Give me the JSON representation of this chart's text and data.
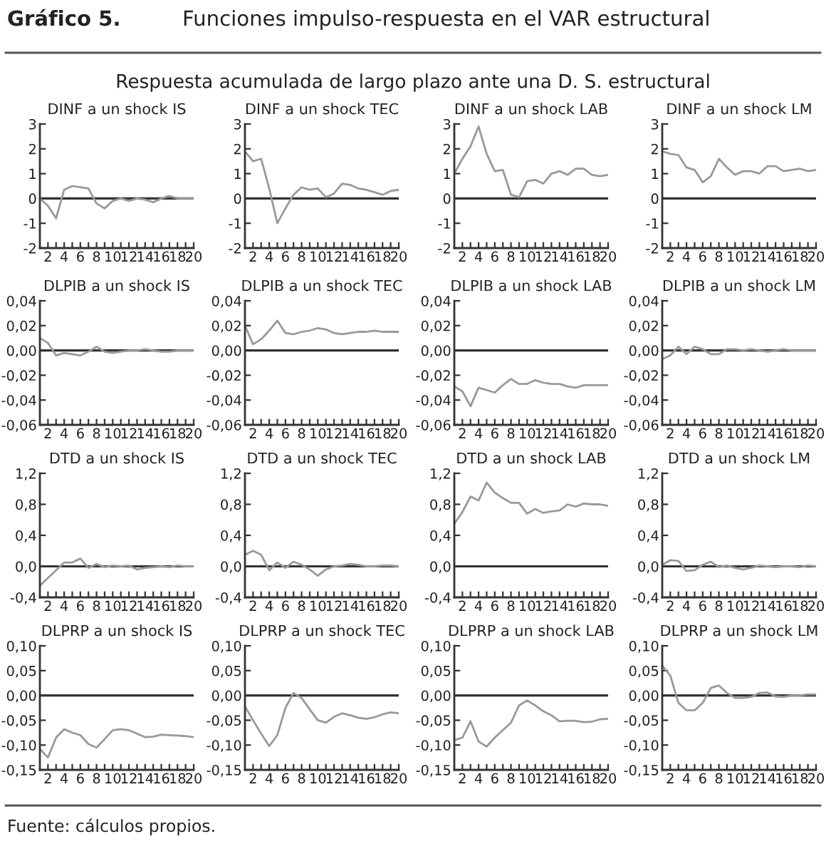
{
  "chart_data": [
    {
      "type": "other",
      "title": "Funciones impulso-respuesta en el VAR estructural",
      "annotations": [
        "Gráfico 5.",
        "Respuesta acumulada de largo plazo ante una D. S. estructural",
        "Fuente: cálculos propios."
      ]
    },
    {
      "type": "line",
      "title": "DINF a un shock IS",
      "x": [
        1,
        2,
        3,
        4,
        5,
        6,
        7,
        8,
        9,
        10,
        11,
        12,
        13,
        14,
        15,
        16,
        17,
        18,
        19,
        20
      ],
      "xlim": [
        1,
        20
      ],
      "ylim": [
        -2,
        3
      ],
      "yticks": [
        -2,
        -1,
        0,
        1,
        2,
        3
      ],
      "xticks": [
        2,
        {
          "value": 3,
          "label": null
        },
        4,
        {
          "value": 5,
          "label": null
        },
        6,
        {
          "value": 7,
          "label": null
        },
        8,
        {
          "value": 9,
          "label": null
        },
        10,
        {
          "value": 11,
          "label": null
        },
        12,
        {
          "value": 13,
          "label": null
        },
        14,
        {
          "value": 15,
          "label": null
        },
        16,
        {
          "value": 17,
          "label": null
        },
        18,
        {
          "value": 19,
          "label": null
        },
        20
      ],
      "ref_lines": [
        {
          "axis": "y",
          "value": 0,
          "color": "#333333"
        }
      ],
      "series": [
        {
          "color": "#999999",
          "values": [
            0,
            -0.3,
            -0.8,
            0.35,
            0.5,
            0.45,
            0.4,
            -0.2,
            -0.4,
            -0.1,
            0,
            -0.1,
            0,
            -0.05,
            -0.15,
            0,
            0.1,
            0,
            0,
            0
          ]
        }
      ]
    },
    {
      "type": "line",
      "title": "DINF a un shock TEC",
      "x": [
        1,
        2,
        3,
        4,
        5,
        6,
        7,
        8,
        9,
        10,
        11,
        12,
        13,
        14,
        15,
        16,
        17,
        18,
        19,
        20
      ],
      "xlim": [
        1,
        20
      ],
      "ylim": [
        -2,
        3
      ],
      "yticks": [
        -2,
        -1,
        0,
        1,
        2,
        3
      ],
      "xticks": [
        2,
        {
          "value": 3,
          "label": null
        },
        4,
        {
          "value": 5,
          "label": null
        },
        6,
        {
          "value": 7,
          "label": null
        },
        8,
        {
          "value": 9,
          "label": null
        },
        10,
        {
          "value": 11,
          "label": null
        },
        12,
        {
          "value": 13,
          "label": null
        },
        14,
        {
          "value": 15,
          "label": null
        },
        16,
        {
          "value": 17,
          "label": null
        },
        18,
        {
          "value": 19,
          "label": null
        },
        20
      ],
      "ref_lines": [
        {
          "axis": "y",
          "value": 0,
          "color": "#333333"
        }
      ],
      "series": [
        {
          "color": "#999999",
          "values": [
            1.9,
            1.5,
            1.6,
            0.4,
            -1.0,
            -0.4,
            0.15,
            0.45,
            0.35,
            0.4,
            0.05,
            0.2,
            0.6,
            0.55,
            0.4,
            0.35,
            0.25,
            0.15,
            0.3,
            0.35
          ]
        }
      ]
    },
    {
      "type": "line",
      "title": "DINF a un shock LAB",
      "x": [
        1,
        2,
        3,
        4,
        5,
        6,
        7,
        8,
        9,
        10,
        11,
        12,
        13,
        14,
        15,
        16,
        17,
        18,
        19,
        20
      ],
      "xlim": [
        1,
        20
      ],
      "ylim": [
        -2,
        3
      ],
      "yticks": [
        -2,
        -1,
        0,
        1,
        2,
        3
      ],
      "xticks": [
        2,
        {
          "value": 3,
          "label": null
        },
        4,
        {
          "value": 5,
          "label": null
        },
        6,
        {
          "value": 7,
          "label": null
        },
        8,
        {
          "value": 9,
          "label": null
        },
        10,
        {
          "value": 11,
          "label": null
        },
        12,
        {
          "value": 13,
          "label": null
        },
        14,
        {
          "value": 15,
          "label": null
        },
        16,
        {
          "value": 17,
          "label": null
        },
        18,
        {
          "value": 19,
          "label": null
        },
        20
      ],
      "ref_lines": [
        {
          "axis": "y",
          "value": 0,
          "color": "#333333"
        }
      ],
      "series": [
        {
          "color": "#999999",
          "values": [
            1.0,
            1.6,
            2.1,
            2.9,
            1.8,
            1.1,
            1.15,
            0.15,
            0.05,
            0.7,
            0.75,
            0.6,
            1.0,
            1.1,
            0.95,
            1.2,
            1.2,
            0.95,
            0.9,
            0.95
          ]
        }
      ]
    },
    {
      "type": "line",
      "title": "DINF a un shock LM",
      "x": [
        1,
        2,
        3,
        4,
        5,
        6,
        7,
        8,
        9,
        10,
        11,
        12,
        13,
        14,
        15,
        16,
        17,
        18,
        19,
        20
      ],
      "xlim": [
        1,
        20
      ],
      "ylim": [
        -2,
        3
      ],
      "yticks": [
        -2,
        -1,
        0,
        1,
        2,
        3
      ],
      "xticks": [
        2,
        {
          "value": 3,
          "label": null
        },
        4,
        {
          "value": 5,
          "label": null
        },
        6,
        {
          "value": 7,
          "label": null
        },
        8,
        {
          "value": 9,
          "label": null
        },
        10,
        {
          "value": 11,
          "label": null
        },
        12,
        {
          "value": 13,
          "label": null
        },
        14,
        {
          "value": 15,
          "label": null
        },
        16,
        {
          "value": 17,
          "label": null
        },
        18,
        {
          "value": 19,
          "label": null
        },
        20
      ],
      "ref_lines": [
        {
          "axis": "y",
          "value": 0,
          "color": "#333333"
        }
      ],
      "series": [
        {
          "color": "#999999",
          "values": [
            1.9,
            1.8,
            1.75,
            1.25,
            1.15,
            0.65,
            0.9,
            1.6,
            1.25,
            0.95,
            1.1,
            1.1,
            1.0,
            1.3,
            1.3,
            1.1,
            1.15,
            1.2,
            1.1,
            1.15
          ]
        }
      ]
    },
    {
      "type": "line",
      "title": "DLPIB a un shock IS",
      "x": [
        1,
        2,
        3,
        4,
        5,
        6,
        7,
        8,
        9,
        10,
        11,
        12,
        13,
        14,
        15,
        16,
        17,
        18,
        19,
        20
      ],
      "xlim": [
        1,
        20
      ],
      "ylim": [
        -0.06,
        0.04
      ],
      "yticks": [
        {
          "value": -0.06,
          "label": "-0,06"
        },
        {
          "value": -0.04,
          "label": "-0,04"
        },
        {
          "value": -0.02,
          "label": "-0,02"
        },
        {
          "value": 0,
          "label": "0,00"
        },
        {
          "value": 0.02,
          "label": "0,02"
        },
        {
          "value": 0.04,
          "label": "0,04"
        }
      ],
      "xticks": [
        2,
        {
          "value": 3,
          "label": null
        },
        4,
        {
          "value": 5,
          "label": null
        },
        6,
        {
          "value": 7,
          "label": null
        },
        8,
        {
          "value": 9,
          "label": null
        },
        10,
        {
          "value": 11,
          "label": null
        },
        12,
        {
          "value": 13,
          "label": null
        },
        14,
        {
          "value": 15,
          "label": null
        },
        16,
        {
          "value": 17,
          "label": null
        },
        18,
        {
          "value": 19,
          "label": null
        },
        20
      ],
      "ref_lines": [
        {
          "axis": "y",
          "value": 0,
          "color": "#333333"
        }
      ],
      "series": [
        {
          "color": "#999999",
          "values": [
            0.01,
            0.006,
            -0.004,
            -0.002,
            -0.003,
            -0.004,
            -0.001,
            0.003,
            -0.001,
            -0.002,
            -0.001,
            0,
            0,
            0.001,
            0,
            -0.001,
            -0.001,
            0,
            0,
            0
          ]
        }
      ]
    },
    {
      "type": "line",
      "title": "DLPIB a un shock TEC",
      "x": [
        1,
        2,
        3,
        4,
        5,
        6,
        7,
        8,
        9,
        10,
        11,
        12,
        13,
        14,
        15,
        16,
        17,
        18,
        19,
        20
      ],
      "xlim": [
        1,
        20
      ],
      "ylim": [
        -0.06,
        0.04
      ],
      "yticks": [
        {
          "value": -0.06,
          "label": "-0,06"
        },
        {
          "value": -0.04,
          "label": "-0,04"
        },
        {
          "value": -0.02,
          "label": "-0,02"
        },
        {
          "value": 0,
          "label": "0,00"
        },
        {
          "value": 0.02,
          "label": "0,02"
        },
        {
          "value": 0.04,
          "label": "0,04"
        }
      ],
      "xticks": [
        2,
        {
          "value": 3,
          "label": null
        },
        4,
        {
          "value": 5,
          "label": null
        },
        6,
        {
          "value": 7,
          "label": null
        },
        8,
        {
          "value": 9,
          "label": null
        },
        10,
        {
          "value": 11,
          "label": null
        },
        12,
        {
          "value": 13,
          "label": null
        },
        14,
        {
          "value": 15,
          "label": null
        },
        16,
        {
          "value": 17,
          "label": null
        },
        18,
        {
          "value": 19,
          "label": null
        },
        20
      ],
      "ref_lines": [
        {
          "axis": "y",
          "value": 0,
          "color": "#333333"
        }
      ],
      "series": [
        {
          "color": "#999999",
          "values": [
            0.02,
            0.005,
            0.009,
            0.016,
            0.024,
            0.014,
            0.013,
            0.015,
            0.016,
            0.018,
            0.017,
            0.014,
            0.013,
            0.014,
            0.015,
            0.015,
            0.016,
            0.015,
            0.015,
            0.015
          ]
        }
      ]
    },
    {
      "type": "line",
      "title": "DLPIB a un shock LAB",
      "x": [
        1,
        2,
        3,
        4,
        5,
        6,
        7,
        8,
        9,
        10,
        11,
        12,
        13,
        14,
        15,
        16,
        17,
        18,
        19,
        20
      ],
      "xlim": [
        1,
        20
      ],
      "ylim": [
        -0.06,
        0.04
      ],
      "yticks": [
        {
          "value": -0.06,
          "label": "-0,06"
        },
        {
          "value": -0.04,
          "label": "-0,04"
        },
        {
          "value": -0.02,
          "label": "-0,02"
        },
        {
          "value": 0,
          "label": "0,00"
        },
        {
          "value": 0.02,
          "label": "0,02"
        },
        {
          "value": 0.04,
          "label": "0,04"
        }
      ],
      "xticks": [
        2,
        {
          "value": 3,
          "label": null
        },
        4,
        {
          "value": 5,
          "label": null
        },
        6,
        {
          "value": 7,
          "label": null
        },
        8,
        {
          "value": 9,
          "label": null
        },
        10,
        {
          "value": 11,
          "label": null
        },
        12,
        {
          "value": 13,
          "label": null
        },
        14,
        {
          "value": 15,
          "label": null
        },
        16,
        {
          "value": 17,
          "label": null
        },
        18,
        {
          "value": 19,
          "label": null
        },
        20
      ],
      "ref_lines": [
        {
          "axis": "y",
          "value": 0,
          "color": "#333333"
        }
      ],
      "series": [
        {
          "color": "#999999",
          "values": [
            -0.029,
            -0.033,
            -0.045,
            -0.03,
            -0.032,
            -0.034,
            -0.028,
            -0.023,
            -0.027,
            -0.027,
            -0.024,
            -0.026,
            -0.027,
            -0.027,
            -0.029,
            -0.03,
            -0.028,
            -0.028,
            -0.028,
            -0.028
          ]
        }
      ]
    },
    {
      "type": "line",
      "title": "DLPIB a un shock LM",
      "x": [
        1,
        2,
        3,
        4,
        5,
        6,
        7,
        8,
        9,
        10,
        11,
        12,
        13,
        14,
        15,
        16,
        17,
        18,
        19,
        20
      ],
      "xlim": [
        1,
        20
      ],
      "ylim": [
        -0.06,
        0.04
      ],
      "yticks": [
        {
          "value": -0.06,
          "label": "-0,06"
        },
        {
          "value": -0.04,
          "label": "-0,04"
        },
        {
          "value": -0.02,
          "label": "-0,02"
        },
        {
          "value": 0,
          "label": "0,00"
        },
        {
          "value": 0.02,
          "label": "0,02"
        },
        {
          "value": 0.04,
          "label": "0,04"
        }
      ],
      "xticks": [
        2,
        {
          "value": 3,
          "label": null
        },
        4,
        {
          "value": 5,
          "label": null
        },
        6,
        {
          "value": 7,
          "label": null
        },
        8,
        {
          "value": 9,
          "label": null
        },
        10,
        {
          "value": 11,
          "label": null
        },
        12,
        {
          "value": 13,
          "label": null
        },
        14,
        {
          "value": 15,
          "label": null
        },
        16,
        {
          "value": 17,
          "label": null
        },
        18,
        {
          "value": 19,
          "label": null
        },
        20
      ],
      "ref_lines": [
        {
          "axis": "y",
          "value": 0,
          "color": "#333333"
        }
      ],
      "series": [
        {
          "color": "#999999",
          "values": [
            -0.007,
            -0.004,
            0.003,
            -0.003,
            0.003,
            0.001,
            -0.003,
            -0.003,
            0.001,
            0.001,
            0,
            0.001,
            0,
            -0.001,
            0,
            0.001,
            0,
            0,
            0,
            0
          ]
        }
      ]
    },
    {
      "type": "line",
      "title": "DTD a un shock IS",
      "x": [
        1,
        2,
        3,
        4,
        5,
        6,
        7,
        8,
        9,
        10,
        11,
        12,
        13,
        14,
        15,
        16,
        17,
        18,
        19,
        20
      ],
      "xlim": [
        1,
        20
      ],
      "ylim": [
        -0.4,
        1.2
      ],
      "yticks": [
        {
          "value": -0.4,
          "label": "-0,4"
        },
        {
          "value": 0,
          "label": "0,0"
        },
        {
          "value": 0.4,
          "label": "0,4"
        },
        {
          "value": 0.8,
          "label": "0,8"
        },
        {
          "value": 1.2,
          "label": "1,2"
        }
      ],
      "xticks": [
        2,
        {
          "value": 3,
          "label": null
        },
        4,
        {
          "value": 5,
          "label": null
        },
        6,
        {
          "value": 7,
          "label": null
        },
        8,
        {
          "value": 9,
          "label": null
        },
        10,
        {
          "value": 11,
          "label": null
        },
        12,
        {
          "value": 13,
          "label": null
        },
        14,
        {
          "value": 15,
          "label": null
        },
        16,
        {
          "value": 17,
          "label": null
        },
        18,
        {
          "value": 19,
          "label": null
        },
        20
      ],
      "ref_lines": [
        {
          "axis": "y",
          "value": 0,
          "color": "#333333"
        }
      ],
      "series": [
        {
          "color": "#999999",
          "values": [
            -0.25,
            -0.15,
            -0.05,
            0.05,
            0.05,
            0.1,
            -0.02,
            0.03,
            -0.01,
            0.01,
            0,
            0.01,
            -0.04,
            -0.02,
            -0.01,
            0,
            -0.01,
            0.01,
            0,
            0
          ]
        }
      ]
    },
    {
      "type": "line",
      "title": "DTD a un shock TEC",
      "x": [
        1,
        2,
        3,
        4,
        5,
        6,
        7,
        8,
        9,
        10,
        11,
        12,
        13,
        14,
        15,
        16,
        17,
        18,
        19,
        20
      ],
      "xlim": [
        1,
        20
      ],
      "ylim": [
        -0.4,
        1.2
      ],
      "yticks": [
        {
          "value": -0.4,
          "label": "-0,4"
        },
        {
          "value": 0,
          "label": "0,0"
        },
        {
          "value": 0.4,
          "label": "0,4"
        },
        {
          "value": 0.8,
          "label": "0,8"
        },
        {
          "value": 1.2,
          "label": "1,2"
        }
      ],
      "xticks": [
        2,
        {
          "value": 3,
          "label": null
        },
        4,
        {
          "value": 5,
          "label": null
        },
        6,
        {
          "value": 7,
          "label": null
        },
        8,
        {
          "value": 9,
          "label": null
        },
        10,
        {
          "value": 11,
          "label": null
        },
        12,
        {
          "value": 13,
          "label": null
        },
        14,
        {
          "value": 15,
          "label": null
        },
        16,
        {
          "value": 17,
          "label": null
        },
        18,
        {
          "value": 19,
          "label": null
        },
        20
      ],
      "ref_lines": [
        {
          "axis": "y",
          "value": 0,
          "color": "#333333"
        }
      ],
      "series": [
        {
          "color": "#999999",
          "values": [
            0.15,
            0.2,
            0.15,
            -0.05,
            0.05,
            -0.02,
            0.06,
            0.02,
            -0.04,
            -0.12,
            -0.04,
            0,
            0.01,
            0.03,
            0.02,
            0,
            0,
            0.01,
            0.01,
            0
          ]
        }
      ]
    },
    {
      "type": "line",
      "title": "DTD a un shock LAB",
      "x": [
        1,
        2,
        3,
        4,
        5,
        6,
        7,
        8,
        9,
        10,
        11,
        12,
        13,
        14,
        15,
        16,
        17,
        18,
        19,
        20
      ],
      "xlim": [
        1,
        20
      ],
      "ylim": [
        -0.4,
        1.2
      ],
      "yticks": [
        {
          "value": -0.4,
          "label": "-0,4"
        },
        {
          "value": 0,
          "label": "0,0"
        },
        {
          "value": 0.4,
          "label": "0,4"
        },
        {
          "value": 0.8,
          "label": "0,8"
        },
        {
          "value": 1.2,
          "label": "1,2"
        }
      ],
      "xticks": [
        2,
        {
          "value": 3,
          "label": null
        },
        4,
        {
          "value": 5,
          "label": null
        },
        6,
        {
          "value": 7,
          "label": null
        },
        8,
        {
          "value": 9,
          "label": null
        },
        10,
        {
          "value": 11,
          "label": null
        },
        12,
        {
          "value": 13,
          "label": null
        },
        14,
        {
          "value": 15,
          "label": null
        },
        16,
        {
          "value": 17,
          "label": null
        },
        18,
        {
          "value": 19,
          "label": null
        },
        20
      ],
      "ref_lines": [
        {
          "axis": "y",
          "value": 0,
          "color": "#333333"
        }
      ],
      "series": [
        {
          "color": "#999999",
          "values": [
            0.55,
            0.7,
            0.9,
            0.85,
            1.08,
            0.95,
            0.88,
            0.82,
            0.82,
            0.68,
            0.74,
            0.69,
            0.71,
            0.72,
            0.8,
            0.77,
            0.81,
            0.8,
            0.8,
            0.78
          ]
        }
      ]
    },
    {
      "type": "line",
      "title": "DTD a un shock LM",
      "x": [
        1,
        2,
        3,
        4,
        5,
        6,
        7,
        8,
        9,
        10,
        11,
        12,
        13,
        14,
        15,
        16,
        17,
        18,
        19,
        20
      ],
      "xlim": [
        1,
        20
      ],
      "ylim": [
        -0.4,
        1.2
      ],
      "yticks": [
        {
          "value": -0.4,
          "label": "-0,4"
        },
        {
          "value": 0,
          "label": "0,0"
        },
        {
          "value": 0.4,
          "label": "0,4"
        },
        {
          "value": 0.8,
          "label": "0,8"
        },
        {
          "value": 1.2,
          "label": "1,2"
        }
      ],
      "xticks": [
        2,
        {
          "value": 3,
          "label": null
        },
        4,
        {
          "value": 5,
          "label": null
        },
        6,
        {
          "value": 7,
          "label": null
        },
        8,
        {
          "value": 9,
          "label": null
        },
        10,
        {
          "value": 11,
          "label": null
        },
        12,
        {
          "value": 13,
          "label": null
        },
        14,
        {
          "value": 15,
          "label": null
        },
        16,
        {
          "value": 17,
          "label": null
        },
        18,
        {
          "value": 19,
          "label": null
        },
        20
      ],
      "ref_lines": [
        {
          "axis": "y",
          "value": 0,
          "color": "#333333"
        }
      ],
      "series": [
        {
          "color": "#999999",
          "values": [
            0.02,
            0.08,
            0.07,
            -0.06,
            -0.05,
            0.02,
            0.06,
            -0.01,
            0.01,
            -0.02,
            -0.04,
            -0.02,
            0.01,
            0,
            -0.01,
            0,
            0,
            -0.01,
            0.01,
            0
          ]
        }
      ]
    },
    {
      "type": "line",
      "title": "DLPRP a un shock IS",
      "x": [
        1,
        2,
        3,
        4,
        5,
        6,
        7,
        8,
        9,
        10,
        11,
        12,
        13,
        14,
        15,
        16,
        17,
        18,
        19,
        20
      ],
      "xlim": [
        1,
        20
      ],
      "ylim": [
        -0.15,
        0.1
      ],
      "yticks": [
        {
          "value": -0.15,
          "label": "-0,15"
        },
        {
          "value": -0.1,
          "label": "-0,10"
        },
        {
          "value": -0.05,
          "label": "-0,05"
        },
        {
          "value": 0,
          "label": "0,00"
        },
        {
          "value": 0.05,
          "label": "0,05"
        },
        {
          "value": 0.1,
          "label": "0,10"
        }
      ],
      "xticks": [
        2,
        {
          "value": 3,
          "label": null
        },
        4,
        {
          "value": 5,
          "label": null
        },
        6,
        {
          "value": 7,
          "label": null
        },
        8,
        {
          "value": 9,
          "label": null
        },
        10,
        {
          "value": 11,
          "label": null
        },
        12,
        {
          "value": 13,
          "label": null
        },
        14,
        {
          "value": 15,
          "label": null
        },
        16,
        {
          "value": 17,
          "label": null
        },
        18,
        {
          "value": 19,
          "label": null
        },
        20
      ],
      "ref_lines": [
        {
          "axis": "y",
          "value": 0,
          "color": "#333333"
        }
      ],
      "series": [
        {
          "color": "#999999",
          "values": [
            -0.108,
            -0.125,
            -0.085,
            -0.068,
            -0.075,
            -0.08,
            -0.098,
            -0.105,
            -0.088,
            -0.07,
            -0.068,
            -0.07,
            -0.077,
            -0.084,
            -0.083,
            -0.079,
            -0.08,
            -0.081,
            -0.082,
            -0.084
          ]
        }
      ]
    },
    {
      "type": "line",
      "title": "DLPRP a un shock TEC",
      "x": [
        1,
        2,
        3,
        4,
        5,
        6,
        7,
        8,
        9,
        10,
        11,
        12,
        13,
        14,
        15,
        16,
        17,
        18,
        19,
        20
      ],
      "xlim": [
        1,
        20
      ],
      "ylim": [
        -0.15,
        0.1
      ],
      "yticks": [
        {
          "value": -0.15,
          "label": "-0,15"
        },
        {
          "value": -0.1,
          "label": "-0,10"
        },
        {
          "value": -0.05,
          "label": "-0,05"
        },
        {
          "value": 0,
          "label": "0,00"
        },
        {
          "value": 0.05,
          "label": "0,05"
        },
        {
          "value": 0.1,
          "label": "0,10"
        }
      ],
      "xticks": [
        2,
        {
          "value": 3,
          "label": null
        },
        4,
        {
          "value": 5,
          "label": null
        },
        6,
        {
          "value": 7,
          "label": null
        },
        8,
        {
          "value": 9,
          "label": null
        },
        10,
        {
          "value": 11,
          "label": null
        },
        12,
        {
          "value": 13,
          "label": null
        },
        14,
        {
          "value": 15,
          "label": null
        },
        16,
        {
          "value": 17,
          "label": null
        },
        18,
        {
          "value": 19,
          "label": null
        },
        20
      ],
      "ref_lines": [
        {
          "axis": "y",
          "value": 0,
          "color": "#333333"
        }
      ],
      "series": [
        {
          "color": "#999999",
          "values": [
            -0.022,
            -0.05,
            -0.077,
            -0.102,
            -0.08,
            -0.025,
            0.005,
            -0.005,
            -0.028,
            -0.05,
            -0.055,
            -0.043,
            -0.036,
            -0.04,
            -0.045,
            -0.047,
            -0.044,
            -0.038,
            -0.034,
            -0.036
          ]
        }
      ]
    },
    {
      "type": "line",
      "title": "DLPRP a un shock LAB",
      "x": [
        1,
        2,
        3,
        4,
        5,
        6,
        7,
        8,
        9,
        10,
        11,
        12,
        13,
        14,
        15,
        16,
        17,
        18,
        19,
        20
      ],
      "xlim": [
        1,
        20
      ],
      "ylim": [
        -0.15,
        0.1
      ],
      "yticks": [
        {
          "value": -0.15,
          "label": "-0,15"
        },
        {
          "value": -0.1,
          "label": "-0,10"
        },
        {
          "value": -0.05,
          "label": "-0,05"
        },
        {
          "value": 0,
          "label": "0,00"
        },
        {
          "value": 0.05,
          "label": "0,05"
        },
        {
          "value": 0.1,
          "label": "0,10"
        }
      ],
      "xticks": [
        2,
        {
          "value": 3,
          "label": null
        },
        4,
        {
          "value": 5,
          "label": null
        },
        6,
        {
          "value": 7,
          "label": null
        },
        8,
        {
          "value": 9,
          "label": null
        },
        10,
        {
          "value": 11,
          "label": null
        },
        12,
        {
          "value": 13,
          "label": null
        },
        14,
        {
          "value": 15,
          "label": null
        },
        16,
        {
          "value": 17,
          "label": null
        },
        18,
        {
          "value": 19,
          "label": null
        },
        20
      ],
      "ref_lines": [
        {
          "axis": "y",
          "value": 0,
          "color": "#333333"
        }
      ],
      "series": [
        {
          "color": "#999999",
          "values": [
            -0.09,
            -0.085,
            -0.052,
            -0.093,
            -0.103,
            -0.085,
            -0.07,
            -0.055,
            -0.02,
            -0.01,
            -0.02,
            -0.032,
            -0.04,
            -0.052,
            -0.051,
            -0.051,
            -0.054,
            -0.053,
            -0.048,
            -0.047
          ]
        }
      ]
    },
    {
      "type": "line",
      "title": "DLPRP a un shock LM",
      "x": [
        1,
        2,
        3,
        4,
        5,
        6,
        7,
        8,
        9,
        10,
        11,
        12,
        13,
        14,
        15,
        16,
        17,
        18,
        19,
        20
      ],
      "xlim": [
        1,
        20
      ],
      "ylim": [
        -0.15,
        0.1
      ],
      "yticks": [
        {
          "value": -0.15,
          "label": "-0,15"
        },
        {
          "value": -0.1,
          "label": "-0,10"
        },
        {
          "value": -0.05,
          "label": "-0,05"
        },
        {
          "value": 0,
          "label": "0,00"
        },
        {
          "value": 0.05,
          "label": "0,05"
        },
        {
          "value": 0.1,
          "label": "0,10"
        }
      ],
      "xticks": [
        2,
        {
          "value": 3,
          "label": null
        },
        4,
        {
          "value": 5,
          "label": null
        },
        6,
        {
          "value": 7,
          "label": null
        },
        8,
        {
          "value": 9,
          "label": null
        },
        10,
        {
          "value": 11,
          "label": null
        },
        12,
        {
          "value": 13,
          "label": null
        },
        14,
        {
          "value": 15,
          "label": null
        },
        16,
        {
          "value": 17,
          "label": null
        },
        18,
        {
          "value": 19,
          "label": null
        },
        20
      ],
      "ref_lines": [
        {
          "axis": "y",
          "value": 0,
          "color": "#333333"
        }
      ],
      "series": [
        {
          "color": "#999999",
          "values": [
            0.06,
            0.04,
            -0.015,
            -0.03,
            -0.03,
            -0.015,
            0.015,
            0.02,
            0.005,
            -0.005,
            -0.005,
            -0.003,
            0.005,
            0.006,
            -0.002,
            -0.003,
            0,
            0,
            0.002,
            0.002
          ]
        }
      ]
    }
  ]
}
